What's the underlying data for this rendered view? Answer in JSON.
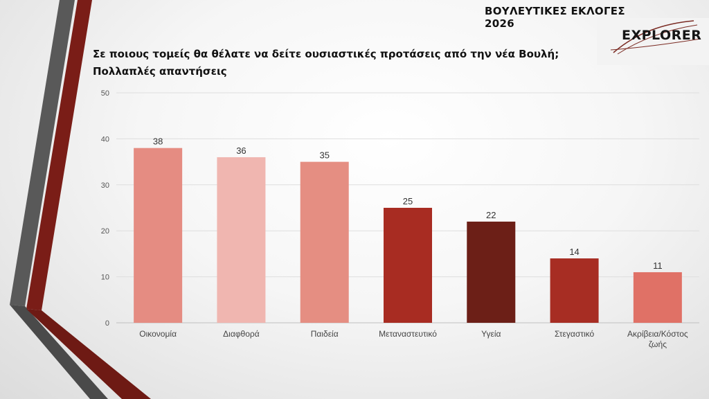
{
  "header": {
    "title": "ΒΟΥΛΕΥΤΙΚΕΣ ΕΚΛΟΓΕΣ 2026"
  },
  "logo": {
    "text": "EXPLORER"
  },
  "question": {
    "line1": "Σε ποιους τομείς θα θέλατε να δείτε ουσιαστικές προτάσεις από την νέα Βουλή;",
    "line2": "Πολλαπλές απαντήσεις"
  },
  "chart_data": {
    "type": "bar",
    "categories": [
      "Οικονομία",
      "Διαφθορά",
      "Παιδεία",
      "Μεταναστευτικό",
      "Υγεία",
      "Στεγαστικό",
      "Ακρίβεια/Κόστος ζωής"
    ],
    "category_lines": [
      [
        "Οικονομία"
      ],
      [
        "Διαφθορά"
      ],
      [
        "Παιδεία"
      ],
      [
        "Μεταναστευτικό"
      ],
      [
        "Υγεία"
      ],
      [
        "Στεγαστικό"
      ],
      [
        "Ακρίβεια/Κόστος",
        "ζωής"
      ]
    ],
    "values": [
      38,
      36,
      35,
      25,
      22,
      14,
      11
    ],
    "colors": [
      "#e58c82",
      "#f0b6b0",
      "#e58e82",
      "#a82c22",
      "#6c1f17",
      "#a72d23",
      "#e07166"
    ],
    "yticks": [
      0,
      10,
      20,
      30,
      40,
      50
    ],
    "ylim": [
      0,
      50
    ],
    "grid": true,
    "title": "",
    "xlabel": "",
    "ylabel": ""
  }
}
